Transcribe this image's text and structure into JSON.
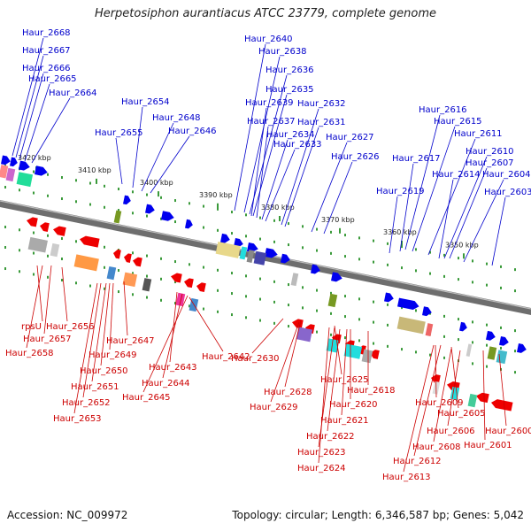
{
  "title": "Herpetosiphon aurantiacus ATCC 23779, complete genome",
  "accession": "Accession: NC_009972",
  "summary": "Topology: circular; Length: 6,346,587 bp; Genes: 5,042",
  "ticks": [
    "3420 kbp",
    "3410 kbp",
    "3400 kbp",
    "3390 kbp",
    "3380 kbp",
    "3370 kbp",
    "3360 kbp",
    "3350 kbp"
  ],
  "forward_labels": [
    "Haur_2668",
    "Haur_2667",
    "Haur_2666",
    "Haur_2665",
    "Haur_2664",
    "Haur_2655",
    "Haur_2654",
    "Haur_2648",
    "Haur_2646",
    "Haur_2640",
    "Haur_2638",
    "Haur_2636",
    "Haur_2635",
    "Haur_2639",
    "Haur_2637",
    "Haur_2634",
    "Haur_2633",
    "Haur_2632",
    "Haur_2631",
    "Haur_2627",
    "Haur_2626",
    "Haur_2616",
    "Haur_2615",
    "Haur_2611",
    "Haur_2617",
    "Haur_2610",
    "Haur_2607",
    "Haur_2614",
    "Haur_2604",
    "Haur_2619",
    "Haur_2603"
  ],
  "reverse_labels": [
    "rpsU",
    "Haur_2656",
    "Haur_2657",
    "Haur_2658",
    "Haur_2647",
    "Haur_2649",
    "Haur_2650",
    "Haur_2651",
    "Haur_2652",
    "Haur_2653",
    "Haur_2643",
    "Haur_2644",
    "Haur_2645",
    "Haur_2642",
    "Haur_2630",
    "Haur_2628",
    "Haur_2629",
    "Haur_2625",
    "Haur_2620",
    "Haur_2621",
    "Haur_2622",
    "Haur_2623",
    "Haur_2624",
    "Haur_2618",
    "Haur_2609",
    "Haur_2605",
    "Haur_2606",
    "Haur_2608",
    "Haur_2612",
    "Haur_2613",
    "Haur_2601",
    "Haur_2600"
  ]
}
